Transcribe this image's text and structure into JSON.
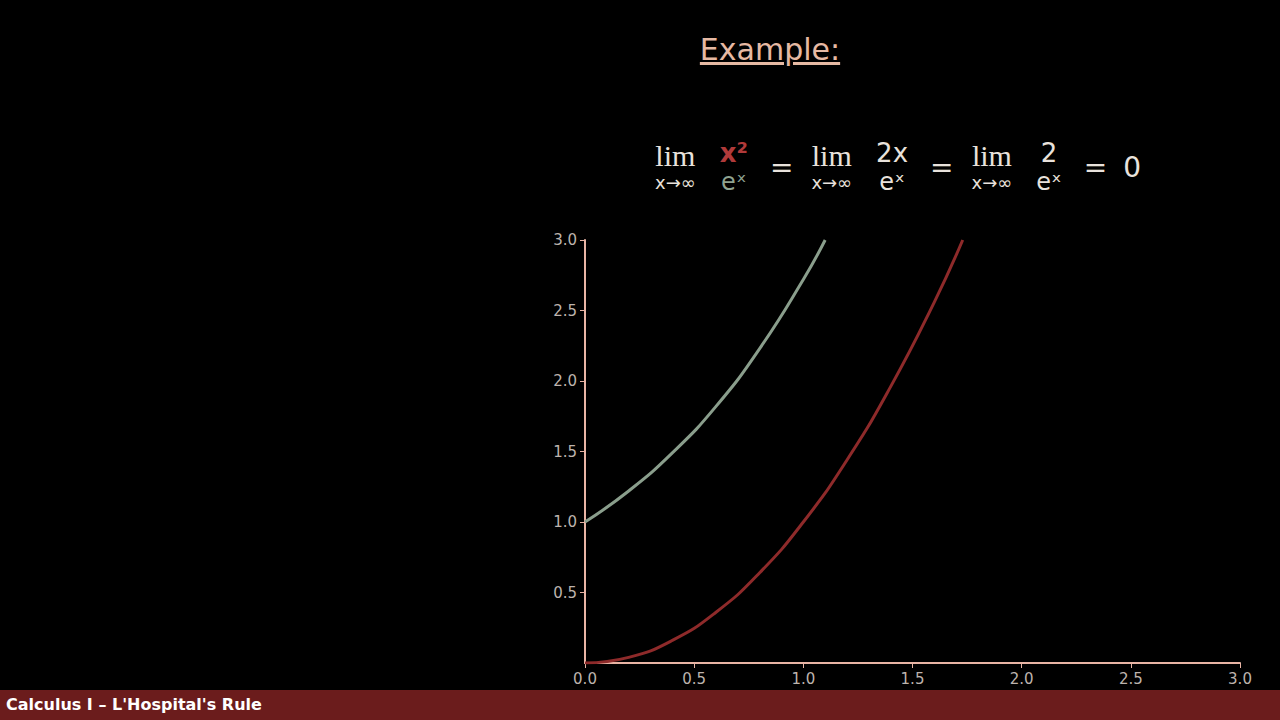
{
  "header": "Example:",
  "footer": "Calculus I – L'Hospital's Rule",
  "equation": {
    "terms": [
      {
        "op": "lim",
        "under": "x→∞",
        "numerator": "x²",
        "denominator": "eˣ"
      },
      {
        "op": "lim",
        "under": "x→∞",
        "numerator": "2x",
        "denominator": "eˣ"
      },
      {
        "op": "lim",
        "under": "x→∞",
        "numerator": "2",
        "denominator": "eˣ"
      }
    ],
    "equals": "=",
    "result": "0"
  },
  "chart_data": {
    "type": "line",
    "series": [
      {
        "color": "#8a9e8c",
        "x": [
          0,
          0.2,
          0.4,
          0.6,
          0.8,
          1.0,
          1.1
        ],
        "values": [
          1.0,
          1.22,
          1.49,
          1.82,
          2.23,
          2.72,
          3.0
        ]
      },
      {
        "color": "#8e2a2a",
        "x": [
          0,
          0.2,
          0.4,
          0.6,
          0.8,
          1.0,
          1.2,
          1.4,
          1.6,
          1.73
        ],
        "values": [
          0,
          0.04,
          0.16,
          0.36,
          0.64,
          1.0,
          1.44,
          1.96,
          2.56,
          3.0
        ]
      }
    ],
    "xlim": [
      0,
      3
    ],
    "ylim": [
      0,
      3
    ],
    "xticks": [
      {
        "value": 0,
        "label": "0.0"
      },
      {
        "value": 0.5,
        "label": "0.5"
      },
      {
        "value": 1,
        "label": "1.0"
      },
      {
        "value": 1.5,
        "label": "1.5"
      },
      {
        "value": 2,
        "label": "2.0"
      },
      {
        "value": 2.5,
        "label": "2.5"
      },
      {
        "value": 3,
        "label": "3.0"
      }
    ],
    "yticks": [
      {
        "value": 0.5,
        "label": "0.5"
      },
      {
        "value": 1,
        "label": "1.0"
      },
      {
        "value": 1.5,
        "label": "1.5"
      },
      {
        "value": 2,
        "label": "2.0"
      },
      {
        "value": 2.5,
        "label": "2.5"
      },
      {
        "value": 3,
        "label": "3.0"
      }
    ],
    "grid": false
  }
}
